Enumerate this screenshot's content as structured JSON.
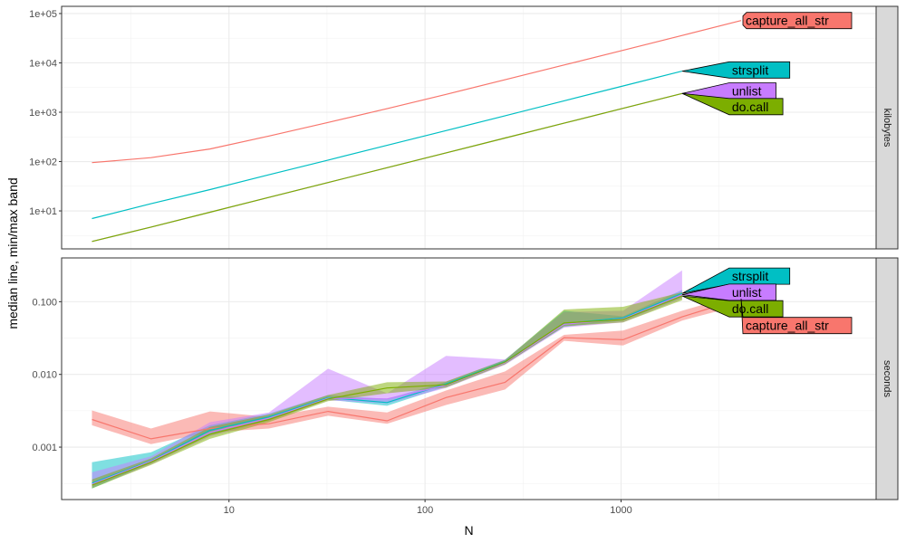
{
  "chart_data": {
    "type": "line",
    "xlabel": "N",
    "ylabel": "median line, min/max band",
    "x_scale": "log",
    "x_ticks": [
      10,
      100,
      1000
    ],
    "x_range": [
      1.4,
      20000
    ],
    "colors": {
      "capture_all_str": "#F8766D",
      "strsplit": "#00BFC4",
      "unlist": "#C77CFF",
      "do.call": "#7CAE00"
    },
    "panels": [
      {
        "strip": "kilobytes",
        "y_scale": "log",
        "y_range": [
          1.7,
          140000
        ],
        "y_ticks": [
          10,
          100,
          1000,
          10000,
          100000
        ],
        "y_tick_labels": [
          "1e+01",
          "1e+02",
          "1e+03",
          "1e+04",
          "1e+05"
        ],
        "series": [
          {
            "name": "capture_all_str",
            "x": [
              2,
              4,
              8,
              16,
              32,
              64,
              128,
              256,
              512,
              1024,
              2048,
              4096
            ],
            "median": [
              95,
              120,
              180,
              330,
              620,
              1180,
              2300,
              4550,
              9050,
              18000,
              36000,
              72000
            ]
          },
          {
            "name": "strsplit",
            "x": [
              2,
              4,
              8,
              16,
              32,
              64,
              128,
              256,
              512,
              1024,
              2048
            ],
            "median": [
              7,
              14,
              27,
              54,
              107,
              213,
              425,
              850,
              1700,
              3400,
              6800
            ]
          },
          {
            "name": "unlist",
            "x": [
              2,
              4,
              8,
              16,
              32,
              64,
              128,
              256,
              512,
              1024,
              2048
            ],
            "median": [
              2.4,
              4.7,
              9.4,
              18.8,
              37.5,
              75,
              150,
              300,
              600,
              1200,
              2400
            ]
          },
          {
            "name": "do.call",
            "x": [
              2,
              4,
              8,
              16,
              32,
              64,
              128,
              256,
              512,
              1024,
              2048
            ],
            "median": [
              2.4,
              4.7,
              9.4,
              18.8,
              37.5,
              75,
              150,
              300,
              600,
              1200,
              2400
            ]
          }
        ],
        "labels": [
          {
            "text": "capture_all_str",
            "series": "capture_all_str",
            "anchor_x": 4096,
            "anchor_y": 72000,
            "label_y": 72000
          },
          {
            "text": "strsplit",
            "series": "strsplit",
            "anchor_x": 2048,
            "anchor_y": 6800,
            "label_y": 7200
          },
          {
            "text": "unlist",
            "series": "unlist",
            "anchor_x": 2048,
            "anchor_y": 2400,
            "label_y": 2700
          },
          {
            "text": "do.call",
            "series": "do.call",
            "anchor_x": 2048,
            "anchor_y": 2400,
            "label_y": 1300
          }
        ]
      },
      {
        "strip": "seconds",
        "y_scale": "log",
        "y_range": [
          0.00019,
          0.4
        ],
        "y_ticks": [
          0.001,
          0.01,
          0.1
        ],
        "y_tick_labels": [
          "0.001",
          "0.010",
          "0.100"
        ],
        "series": [
          {
            "name": "capture_all_str",
            "x": [
              2,
              4,
              8,
              16,
              32,
              64,
              128,
              256,
              512,
              1024,
              2048,
              4096
            ],
            "median": [
              0.0024,
              0.0013,
              0.0018,
              0.0021,
              0.0031,
              0.0023,
              0.0048,
              0.0078,
              0.032,
              0.03,
              0.062,
              0.11
            ],
            "min": [
              0.002,
              0.0011,
              0.0016,
              0.0018,
              0.0027,
              0.0021,
              0.0038,
              0.0062,
              0.029,
              0.025,
              0.055,
              0.09
            ],
            "max": [
              0.0032,
              0.0018,
              0.0031,
              0.0026,
              0.0036,
              0.003,
              0.006,
              0.011,
              0.035,
              0.04,
              0.075,
              0.13
            ]
          },
          {
            "name": "strsplit",
            "x": [
              2,
              4,
              8,
              16,
              32,
              64,
              128,
              256,
              512,
              1024,
              2048
            ],
            "median": [
              0.00032,
              0.00065,
              0.0017,
              0.0026,
              0.0048,
              0.0041,
              0.0074,
              0.015,
              0.05,
              0.06,
              0.13
            ],
            "min": [
              0.00027,
              0.0006,
              0.0015,
              0.0024,
              0.0045,
              0.0037,
              0.0068,
              0.014,
              0.045,
              0.055,
              0.115
            ],
            "max": [
              0.00062,
              0.00085,
              0.002,
              0.0029,
              0.0052,
              0.0046,
              0.0079,
              0.016,
              0.075,
              0.063,
              0.145
            ]
          },
          {
            "name": "unlist",
            "x": [
              2,
              4,
              8,
              16,
              32,
              64,
              128,
              256,
              512,
              1024,
              2048
            ],
            "median": [
              0.00031,
              0.00064,
              0.0016,
              0.0025,
              0.0047,
              0.0046,
              0.0071,
              0.0145,
              0.049,
              0.058,
              0.125
            ],
            "min": [
              0.00028,
              0.00058,
              0.0014,
              0.0023,
              0.0044,
              0.004,
              0.0065,
              0.0135,
              0.044,
              0.052,
              0.11
            ],
            "max": [
              0.00045,
              0.00075,
              0.0022,
              0.003,
              0.012,
              0.0055,
              0.018,
              0.016,
              0.072,
              0.075,
              0.27
            ]
          },
          {
            "name": "do.call",
            "x": [
              2,
              4,
              8,
              16,
              32,
              64,
              128,
              256,
              512,
              1024,
              2048
            ],
            "median": [
              0.0003,
              0.00062,
              0.0015,
              0.0024,
              0.0046,
              0.0065,
              0.0072,
              0.0148,
              0.051,
              0.057,
              0.12
            ],
            "min": [
              0.00027,
              0.00057,
              0.0013,
              0.0022,
              0.0043,
              0.0055,
              0.0066,
              0.0138,
              0.046,
              0.052,
              0.105
            ],
            "max": [
              0.00036,
              0.0007,
              0.0019,
              0.0028,
              0.0052,
              0.0078,
              0.008,
              0.0158,
              0.078,
              0.085,
              0.135
            ]
          }
        ],
        "labels": [
          {
            "text": "strsplit",
            "series": "strsplit",
            "anchor_x": 2048,
            "anchor_y": 0.13,
            "label_y": 0.225
          },
          {
            "text": "unlist",
            "series": "unlist",
            "anchor_x": 2048,
            "anchor_y": 0.125,
            "label_y": 0.135
          },
          {
            "text": "do.call",
            "series": "do.call",
            "anchor_x": 2048,
            "anchor_y": 0.12,
            "label_y": 0.08
          },
          {
            "text": "capture_all_str",
            "series": "capture_all_str",
            "anchor_x": 4096,
            "anchor_y": 0.11,
            "label_y": 0.047
          }
        ]
      }
    ]
  }
}
